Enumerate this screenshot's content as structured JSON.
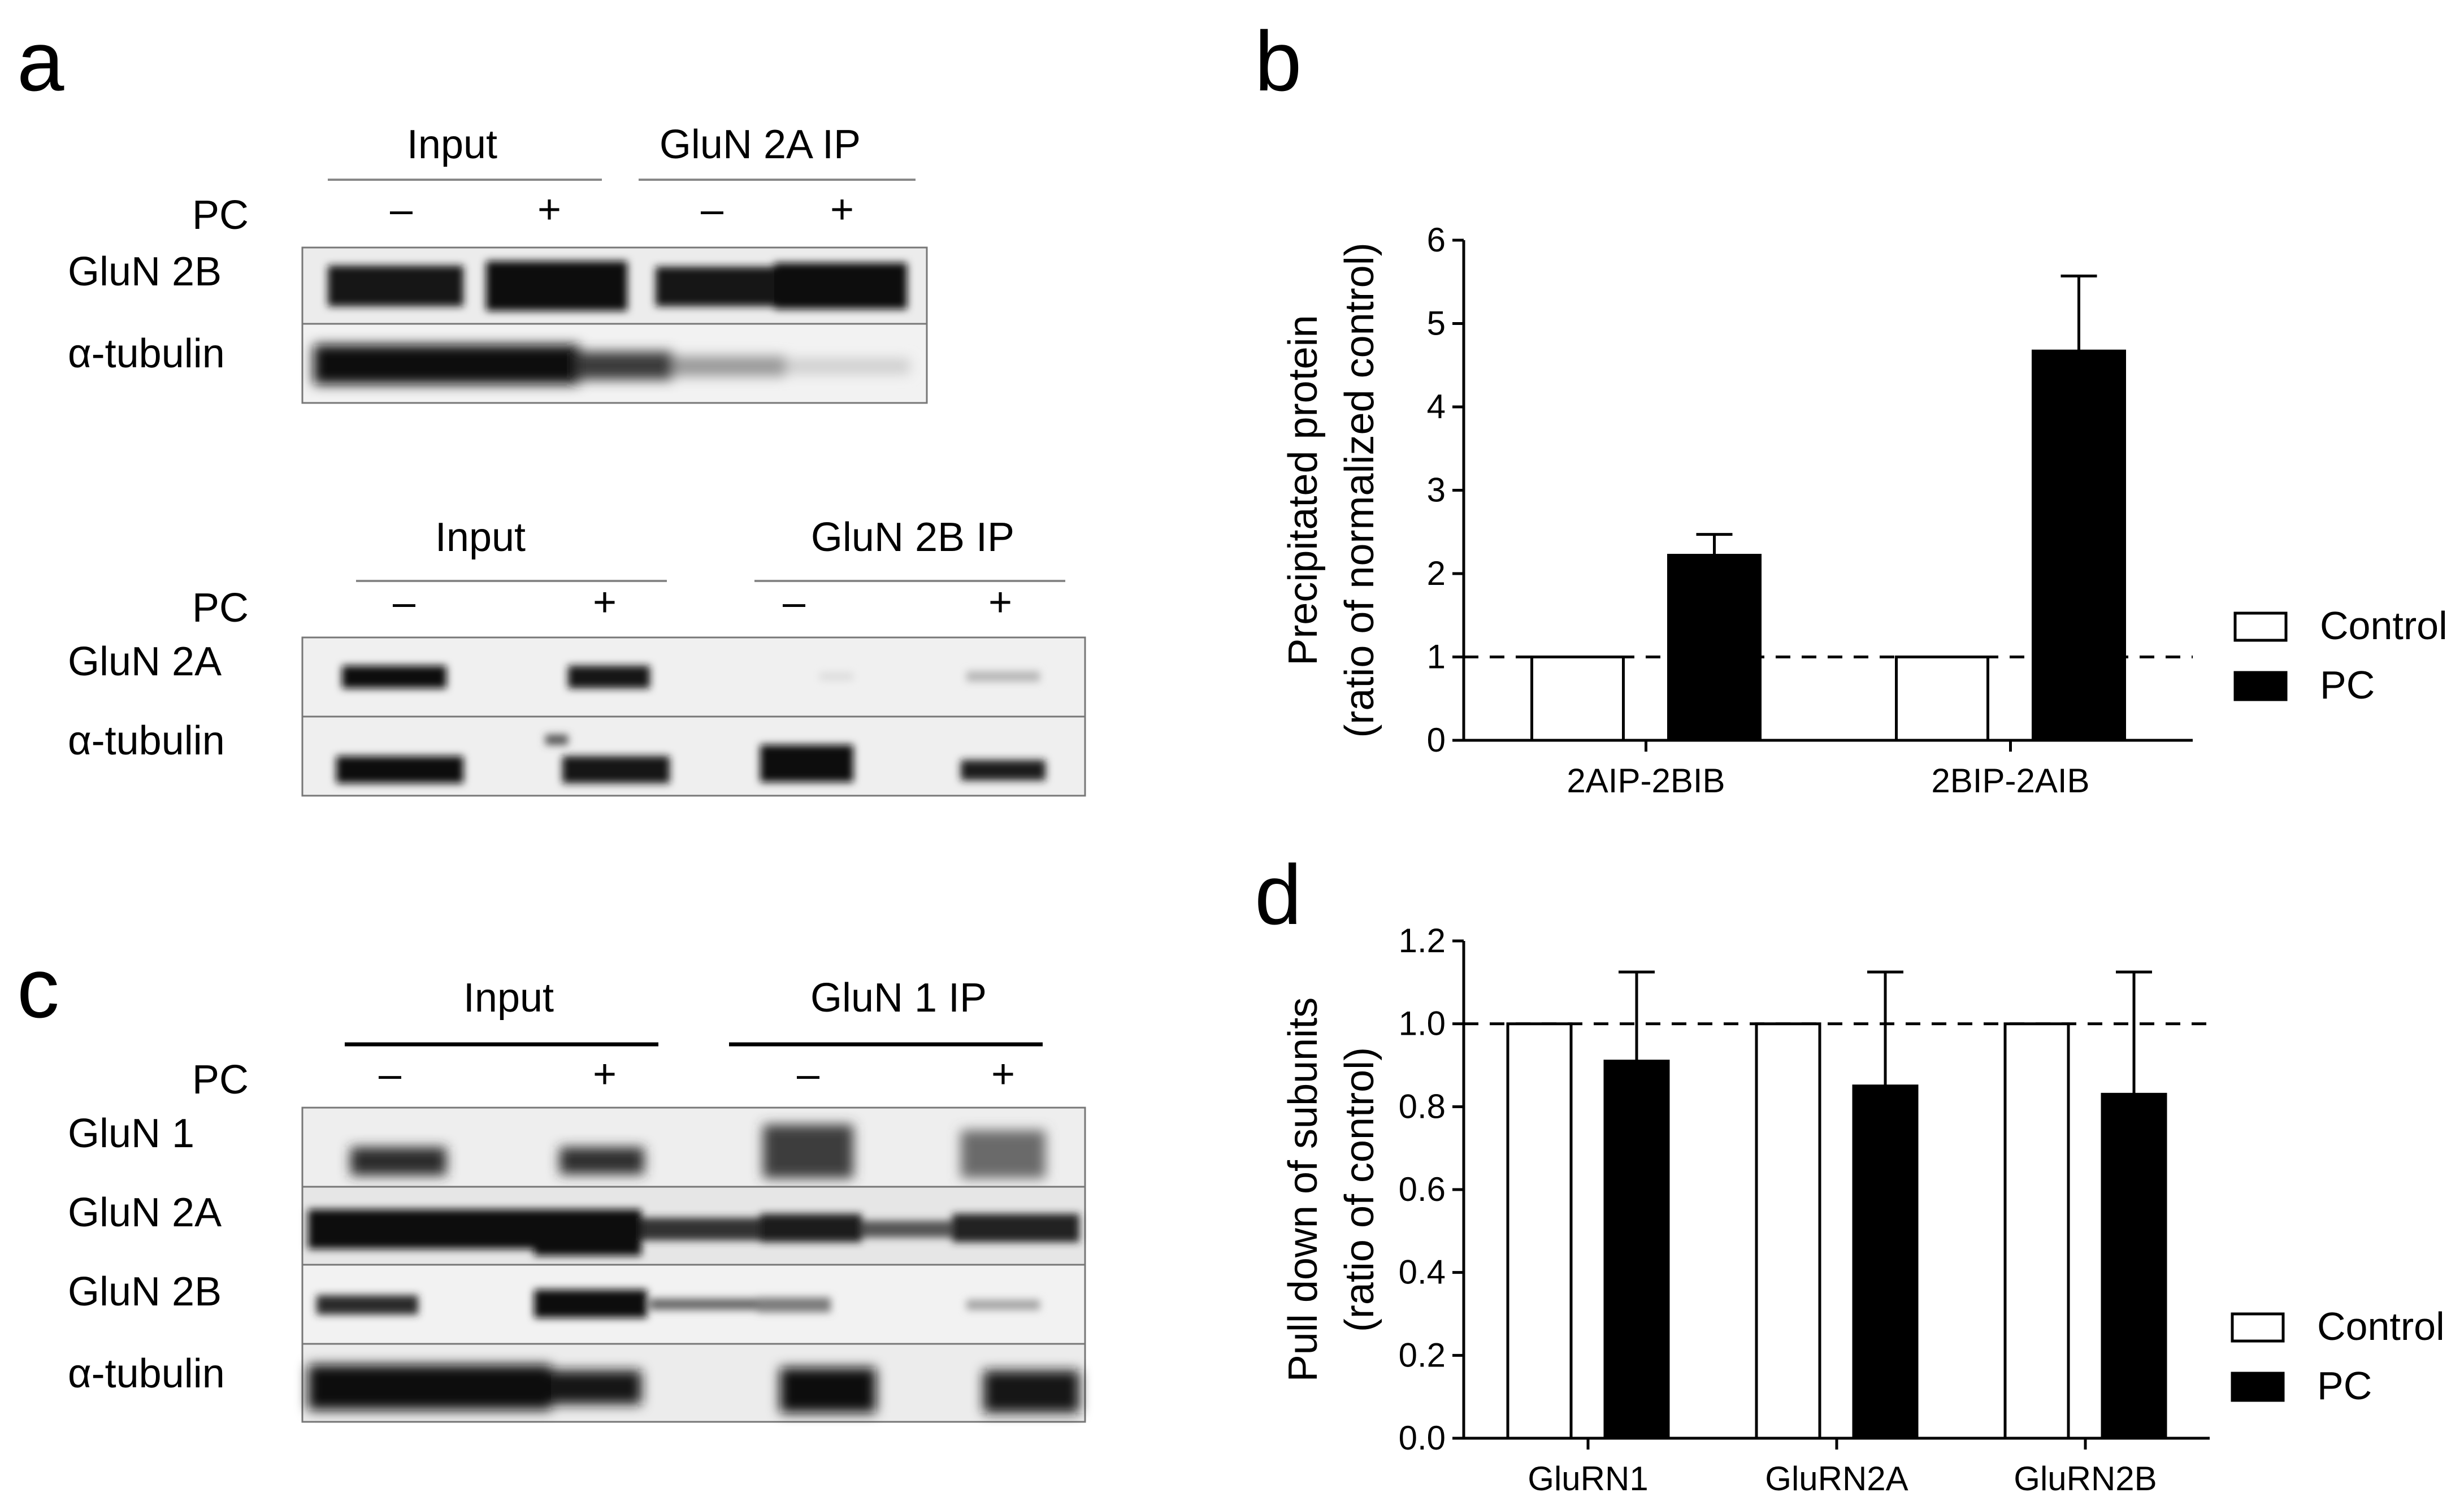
{
  "panels": {
    "a": {
      "letter": "a",
      "blot1": {
        "group_left": "Input",
        "group_right": "GluN 2A IP",
        "condition": "PC",
        "lane_signs": [
          "–",
          "+",
          "–",
          "+"
        ],
        "rows": [
          "GluN 2B",
          "α-tubulin"
        ]
      },
      "blot2": {
        "group_left": "Input",
        "group_right": "GluN 2B IP",
        "condition": "PC",
        "lane_signs": [
          "–",
          "+",
          "–",
          "+"
        ],
        "rows": [
          "GluN 2A",
          "α-tubulin"
        ]
      }
    },
    "b": {
      "letter": "b"
    },
    "c": {
      "letter": "c",
      "blot": {
        "group_left": "Input",
        "group_right": "GluN 1 IP",
        "condition": "PC",
        "lane_signs": [
          "–",
          "+",
          "–",
          "+"
        ],
        "rows": [
          "GluN 1",
          "GluN 2A",
          "GluN 2B",
          "α-tubulin"
        ]
      }
    },
    "d": {
      "letter": "d"
    }
  },
  "chart_data": [
    {
      "panel": "b",
      "type": "bar",
      "ylabel_line1": "Precipitated protein",
      "ylabel_line2": "(ratio of normalized control)",
      "categories": [
        "2AIP-2BIB",
        "2BIP-2AIB"
      ],
      "series": [
        {
          "name": "Control",
          "values": [
            1.0,
            1.0
          ],
          "errors": [
            0,
            0
          ],
          "color": "#ffffff"
        },
        {
          "name": "PC",
          "values": [
            2.22,
            4.67
          ],
          "errors": [
            0.25,
            0.9
          ],
          "color": "#000000"
        }
      ],
      "ylim": [
        0,
        6
      ],
      "yticks": [
        "0",
        "1",
        "2",
        "3",
        "4",
        "5",
        "6"
      ],
      "reference_line": 1,
      "legend_position": "right"
    },
    {
      "panel": "d",
      "type": "bar",
      "ylabel_line1": "Pull down of subunits",
      "ylabel_line2": "(ratio of control)",
      "categories": [
        "GluRN1",
        "GluRN2A",
        "GluRN2B"
      ],
      "series": [
        {
          "name": "Control",
          "values": [
            1.0,
            1.0,
            1.0
          ],
          "errors": [
            0,
            0,
            0
          ],
          "color": "#ffffff"
        },
        {
          "name": "PC",
          "values": [
            0.91,
            0.85,
            0.83
          ],
          "errors": [
            0.215,
            0.275,
            0.295
          ],
          "color": "#000000"
        }
      ],
      "ylim": [
        0,
        1.2
      ],
      "yticks": [
        "0.0",
        "0.2",
        "0.4",
        "0.6",
        "0.8",
        "1.0",
        "1.2"
      ],
      "reference_line": 1.0,
      "legend_position": "right"
    }
  ]
}
